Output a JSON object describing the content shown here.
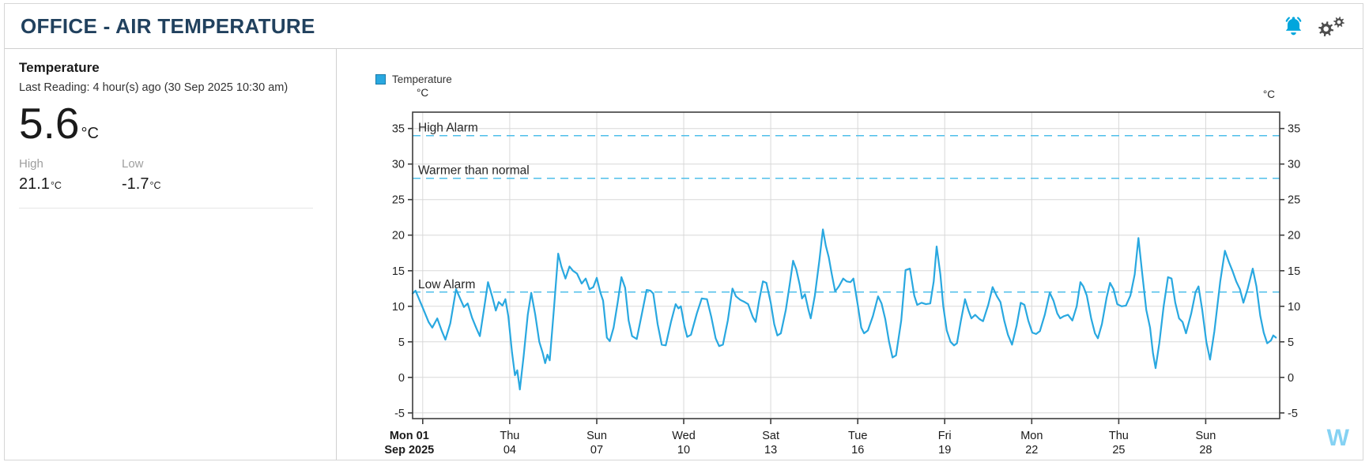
{
  "header": {
    "title": "OFFICE - AIR TEMPERATURE",
    "icons": [
      {
        "name": "alarm-bell-icon"
      },
      {
        "name": "settings-gears-icon"
      }
    ]
  },
  "summary_panel": {
    "title": "Temperature",
    "last_reading": "Last Reading: 4 hour(s) ago (30 Sep 2025 10:30 am)",
    "current_value": "5.6",
    "current_unit": "°C",
    "high_label": "High",
    "high_value": "21.1",
    "high_unit": "°C",
    "low_label": "Low",
    "low_value": "-1.7",
    "low_unit": "°C"
  },
  "watermark": "W",
  "colors": {
    "accent_blue": "#29a8e0",
    "alarm_dash": "#4fbfea",
    "bell": "#00a6dd",
    "gears": "#4d4d4d",
    "title": "#21415e",
    "grid": "#d8d8d8",
    "axis": "#3d3d3d",
    "text_dark": "#262626",
    "muted": "#9e9e9e",
    "watermark": "#85d2f3"
  },
  "chart_data": {
    "type": "line",
    "title": "",
    "legend": [
      {
        "label": "Temperature",
        "color": "#29a8e0"
      }
    ],
    "grid": true,
    "y_axis": {
      "unit": "°C",
      "ticks": [
        -5,
        0,
        5,
        10,
        15,
        20,
        25,
        30,
        35
      ],
      "range": [
        -5.8,
        37.3
      ],
      "labels_on_both_sides": true
    },
    "x_axis": {
      "range_days": [
        -0.35,
        29.55
      ],
      "ticks": [
        {
          "line1": "Mon 01",
          "line2": "Sep 2025",
          "t": 0,
          "bold": true
        },
        {
          "line1": "Thu",
          "line2": "04",
          "t": 3
        },
        {
          "line1": "Sun",
          "line2": "07",
          "t": 6
        },
        {
          "line1": "Wed",
          "line2": "10",
          "t": 9
        },
        {
          "line1": "Sat",
          "line2": "13",
          "t": 12
        },
        {
          "line1": "Tue",
          "line2": "16",
          "t": 15
        },
        {
          "line1": "Fri",
          "line2": "19",
          "t": 18
        },
        {
          "line1": "Mon",
          "line2": "22",
          "t": 21
        },
        {
          "line1": "Thu",
          "line2": "25",
          "t": 24
        },
        {
          "line1": "Sun",
          "line2": "28",
          "t": 27
        }
      ]
    },
    "reference_lines": [
      {
        "label": "High Alarm",
        "value": 34
      },
      {
        "label": "Warmer than normal",
        "value": 28
      },
      {
        "label": "Low Alarm",
        "value": 12
      }
    ],
    "series": [
      {
        "name": "Temperature",
        "unit": "°C",
        "points": [
          [
            -0.35,
            11.8
          ],
          [
            -0.25,
            12.2
          ],
          [
            0.0,
            9.8
          ],
          [
            0.2,
            7.8
          ],
          [
            0.33,
            7.0
          ],
          [
            0.5,
            8.3
          ],
          [
            0.65,
            6.6
          ],
          [
            0.78,
            5.3
          ],
          [
            0.95,
            7.6
          ],
          [
            1.15,
            12.4
          ],
          [
            1.3,
            11.0
          ],
          [
            1.42,
            9.9
          ],
          [
            1.55,
            10.4
          ],
          [
            1.7,
            8.4
          ],
          [
            1.85,
            6.9
          ],
          [
            1.97,
            5.8
          ],
          [
            2.12,
            9.8
          ],
          [
            2.25,
            13.4
          ],
          [
            2.4,
            11.3
          ],
          [
            2.52,
            9.4
          ],
          [
            2.62,
            10.6
          ],
          [
            2.75,
            10.1
          ],
          [
            2.85,
            11.0
          ],
          [
            2.95,
            8.6
          ],
          [
            3.08,
            3.5
          ],
          [
            3.18,
            0.3
          ],
          [
            3.26,
            1.0
          ],
          [
            3.35,
            -1.7
          ],
          [
            3.48,
            3.0
          ],
          [
            3.62,
            8.8
          ],
          [
            3.74,
            11.9
          ],
          [
            3.88,
            8.8
          ],
          [
            4.02,
            5.0
          ],
          [
            4.14,
            3.4
          ],
          [
            4.22,
            2.0
          ],
          [
            4.3,
            3.2
          ],
          [
            4.38,
            2.4
          ],
          [
            4.52,
            9.5
          ],
          [
            4.67,
            17.4
          ],
          [
            4.78,
            15.6
          ],
          [
            4.92,
            13.9
          ],
          [
            5.06,
            15.6
          ],
          [
            5.18,
            15.0
          ],
          [
            5.32,
            14.6
          ],
          [
            5.48,
            13.2
          ],
          [
            5.62,
            13.9
          ],
          [
            5.75,
            12.4
          ],
          [
            5.88,
            12.7
          ],
          [
            6.0,
            14.0
          ],
          [
            6.12,
            12.0
          ],
          [
            6.22,
            10.8
          ],
          [
            6.35,
            5.6
          ],
          [
            6.45,
            5.1
          ],
          [
            6.58,
            7.0
          ],
          [
            6.72,
            10.5
          ],
          [
            6.85,
            14.1
          ],
          [
            6.98,
            12.6
          ],
          [
            7.1,
            8.0
          ],
          [
            7.22,
            5.8
          ],
          [
            7.38,
            5.4
          ],
          [
            7.55,
            8.8
          ],
          [
            7.72,
            12.3
          ],
          [
            7.85,
            12.2
          ],
          [
            7.95,
            11.8
          ],
          [
            8.1,
            7.5
          ],
          [
            8.24,
            4.6
          ],
          [
            8.38,
            4.5
          ],
          [
            8.56,
            7.8
          ],
          [
            8.72,
            10.3
          ],
          [
            8.82,
            9.7
          ],
          [
            8.9,
            10.0
          ],
          [
            9.02,
            7.3
          ],
          [
            9.12,
            5.7
          ],
          [
            9.25,
            6.0
          ],
          [
            9.45,
            9.0
          ],
          [
            9.62,
            11.1
          ],
          [
            9.8,
            11.0
          ],
          [
            9.95,
            8.5
          ],
          [
            10.1,
            5.5
          ],
          [
            10.22,
            4.4
          ],
          [
            10.35,
            4.6
          ],
          [
            10.52,
            8.0
          ],
          [
            10.68,
            12.5
          ],
          [
            10.8,
            11.4
          ],
          [
            10.95,
            10.9
          ],
          [
            11.1,
            10.6
          ],
          [
            11.22,
            10.3
          ],
          [
            11.38,
            8.5
          ],
          [
            11.48,
            7.8
          ],
          [
            11.6,
            10.8
          ],
          [
            11.73,
            13.5
          ],
          [
            11.85,
            13.3
          ],
          [
            12.0,
            10.5
          ],
          [
            12.12,
            7.5
          ],
          [
            12.23,
            5.9
          ],
          [
            12.35,
            6.2
          ],
          [
            12.52,
            9.5
          ],
          [
            12.65,
            13.0
          ],
          [
            12.77,
            16.4
          ],
          [
            12.88,
            15.2
          ],
          [
            13.0,
            13.0
          ],
          [
            13.08,
            11.1
          ],
          [
            13.18,
            11.7
          ],
          [
            13.3,
            9.5
          ],
          [
            13.38,
            8.3
          ],
          [
            13.52,
            11.5
          ],
          [
            13.68,
            16.5
          ],
          [
            13.8,
            20.8
          ],
          [
            13.9,
            18.5
          ],
          [
            14.0,
            16.9
          ],
          [
            14.1,
            14.6
          ],
          [
            14.22,
            12.1
          ],
          [
            14.35,
            12.8
          ],
          [
            14.5,
            13.9
          ],
          [
            14.62,
            13.5
          ],
          [
            14.75,
            13.4
          ],
          [
            14.85,
            13.9
          ],
          [
            15.0,
            10.2
          ],
          [
            15.12,
            7.0
          ],
          [
            15.22,
            6.2
          ],
          [
            15.35,
            6.6
          ],
          [
            15.52,
            8.6
          ],
          [
            15.7,
            11.4
          ],
          [
            15.82,
            10.4
          ],
          [
            15.95,
            8.2
          ],
          [
            16.08,
            5.0
          ],
          [
            16.2,
            2.8
          ],
          [
            16.32,
            3.1
          ],
          [
            16.5,
            8.0
          ],
          [
            16.65,
            15.1
          ],
          [
            16.8,
            15.3
          ],
          [
            16.95,
            11.5
          ],
          [
            17.05,
            10.2
          ],
          [
            17.2,
            10.5
          ],
          [
            17.35,
            10.3
          ],
          [
            17.5,
            10.4
          ],
          [
            17.62,
            13.5
          ],
          [
            17.72,
            18.4
          ],
          [
            17.85,
            14.5
          ],
          [
            17.95,
            10.0
          ],
          [
            18.07,
            6.6
          ],
          [
            18.2,
            5.0
          ],
          [
            18.32,
            4.5
          ],
          [
            18.42,
            4.8
          ],
          [
            18.55,
            7.8
          ],
          [
            18.7,
            11.0
          ],
          [
            18.82,
            9.4
          ],
          [
            18.92,
            8.3
          ],
          [
            19.05,
            8.8
          ],
          [
            19.2,
            8.2
          ],
          [
            19.32,
            7.9
          ],
          [
            19.5,
            10.2
          ],
          [
            19.65,
            12.7
          ],
          [
            19.8,
            11.4
          ],
          [
            19.92,
            10.6
          ],
          [
            20.05,
            8.0
          ],
          [
            20.18,
            6.0
          ],
          [
            20.32,
            4.6
          ],
          [
            20.48,
            7.3
          ],
          [
            20.62,
            10.5
          ],
          [
            20.75,
            10.2
          ],
          [
            20.88,
            8.0
          ],
          [
            21.02,
            6.3
          ],
          [
            21.15,
            6.1
          ],
          [
            21.28,
            6.5
          ],
          [
            21.45,
            8.8
          ],
          [
            21.62,
            11.9
          ],
          [
            21.75,
            10.8
          ],
          [
            21.88,
            9.0
          ],
          [
            21.98,
            8.3
          ],
          [
            22.1,
            8.6
          ],
          [
            22.25,
            8.8
          ],
          [
            22.4,
            8.0
          ],
          [
            22.55,
            10.0
          ],
          [
            22.68,
            13.4
          ],
          [
            22.78,
            12.8
          ],
          [
            22.9,
            11.5
          ],
          [
            23.05,
            8.3
          ],
          [
            23.18,
            6.2
          ],
          [
            23.28,
            5.5
          ],
          [
            23.42,
            7.5
          ],
          [
            23.58,
            11.2
          ],
          [
            23.7,
            13.3
          ],
          [
            23.82,
            12.4
          ],
          [
            23.95,
            10.3
          ],
          [
            24.1,
            10.0
          ],
          [
            24.25,
            10.1
          ],
          [
            24.4,
            11.5
          ],
          [
            24.55,
            14.5
          ],
          [
            24.68,
            19.6
          ],
          [
            24.8,
            15.0
          ],
          [
            24.95,
            9.5
          ],
          [
            25.08,
            7.0
          ],
          [
            25.18,
            3.4
          ],
          [
            25.27,
            1.3
          ],
          [
            25.4,
            4.8
          ],
          [
            25.55,
            10.0
          ],
          [
            25.7,
            14.1
          ],
          [
            25.82,
            13.9
          ],
          [
            25.95,
            10.5
          ],
          [
            26.08,
            8.3
          ],
          [
            26.2,
            7.8
          ],
          [
            26.32,
            6.2
          ],
          [
            26.5,
            9.0
          ],
          [
            26.65,
            12.0
          ],
          [
            26.75,
            12.8
          ],
          [
            26.88,
            9.5
          ],
          [
            27.02,
            5.0
          ],
          [
            27.15,
            2.5
          ],
          [
            27.3,
            6.5
          ],
          [
            27.5,
            13.5
          ],
          [
            27.66,
            17.8
          ],
          [
            27.8,
            16.2
          ],
          [
            27.92,
            15.0
          ],
          [
            28.05,
            13.5
          ],
          [
            28.18,
            12.4
          ],
          [
            28.3,
            10.5
          ],
          [
            28.45,
            12.5
          ],
          [
            28.62,
            15.3
          ],
          [
            28.75,
            12.8
          ],
          [
            28.88,
            8.7
          ],
          [
            29.0,
            6.3
          ],
          [
            29.12,
            4.8
          ],
          [
            29.25,
            5.2
          ],
          [
            29.33,
            5.9
          ],
          [
            29.42,
            5.6
          ]
        ]
      }
    ]
  }
}
